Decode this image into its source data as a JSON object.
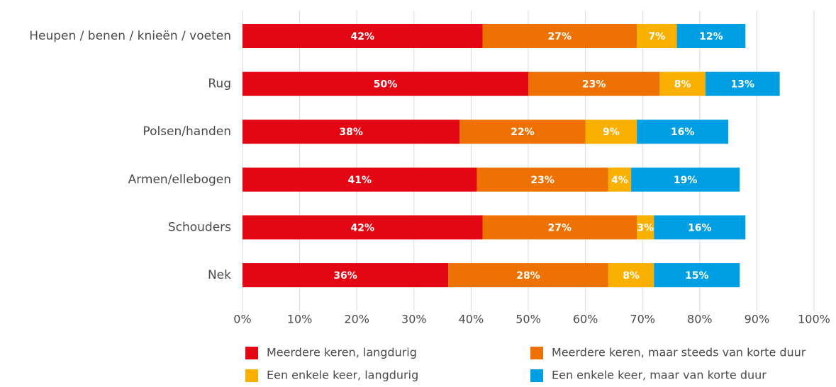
{
  "chart_data": {
    "type": "stacked_bar_horizontal",
    "categories": [
      "Heupen / benen / knieën / voeten",
      "Rug",
      "Polsen/handen",
      "Armen/ellebogen",
      "Schouders",
      "Nek"
    ],
    "series": [
      {
        "name": "Meerdere keren, langdurig",
        "color": "#e30613",
        "values": [
          42,
          50,
          38,
          41,
          42,
          36
        ],
        "value_labels": [
          "42%",
          "50%",
          "38%",
          "41%",
          "42%",
          "36%"
        ]
      },
      {
        "name": "Meerdere keren, maar steeds van korte duur",
        "color": "#ee7203",
        "values": [
          27,
          23,
          22,
          23,
          27,
          28
        ],
        "value_labels": [
          "27%",
          "23%",
          "22%",
          "23%",
          "27%",
          "28%"
        ]
      },
      {
        "name": "Een enkele keer, langdurig",
        "color": "#f9b000",
        "values": [
          7,
          8,
          9,
          4,
          3,
          8
        ],
        "value_labels": [
          "7%",
          "8%",
          "9%",
          "4%",
          "3%",
          "8%"
        ]
      },
      {
        "name": "Een enkele keer, maar van korte duur",
        "color": "#009fe3",
        "values": [
          12,
          13,
          16,
          19,
          16,
          15
        ],
        "value_labels": [
          "12%",
          "13%",
          "16%",
          "19%",
          "16%",
          "15%"
        ]
      }
    ],
    "xlim": [
      0,
      100
    ],
    "xticks": [
      {
        "value": 0,
        "label": "0%"
      },
      {
        "value": 10,
        "label": "10%"
      },
      {
        "value": 20,
        "label": "20%"
      },
      {
        "value": 30,
        "label": "30%"
      },
      {
        "value": 40,
        "label": "40%"
      },
      {
        "value": 50,
        "label": "50%"
      },
      {
        "value": 60,
        "label": "60%"
      },
      {
        "value": 70,
        "label": "70%"
      },
      {
        "value": 80,
        "label": "80%"
      },
      {
        "value": 90,
        "label": "90%"
      },
      {
        "value": 100,
        "label": "100%"
      }
    ],
    "grid": true,
    "legend": "bottom"
  }
}
